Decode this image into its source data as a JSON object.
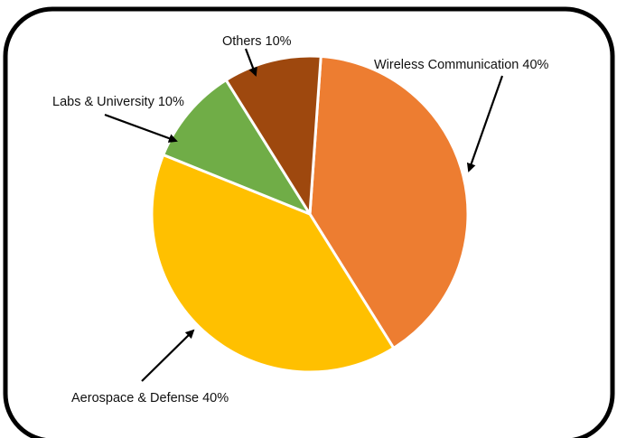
{
  "chart_data": {
    "type": "pie",
    "title": "",
    "slices": [
      {
        "label": "Wireless Communication",
        "value": 40,
        "display": "Wireless Communication 40%",
        "color": "#ED7D31"
      },
      {
        "label": "Aerospace & Defense",
        "value": 40,
        "display": "Aerospace & Defense 40%",
        "color": "#FFC000"
      },
      {
        "label": "Labs & University",
        "value": 10,
        "display": "Labs & University 10%",
        "color": "#70AD47"
      },
      {
        "label": "Others",
        "value": 10,
        "display": "Others 10%",
        "color": "#9E480E"
      }
    ],
    "legend": "none",
    "data_labels": "outside-with-arrows"
  }
}
